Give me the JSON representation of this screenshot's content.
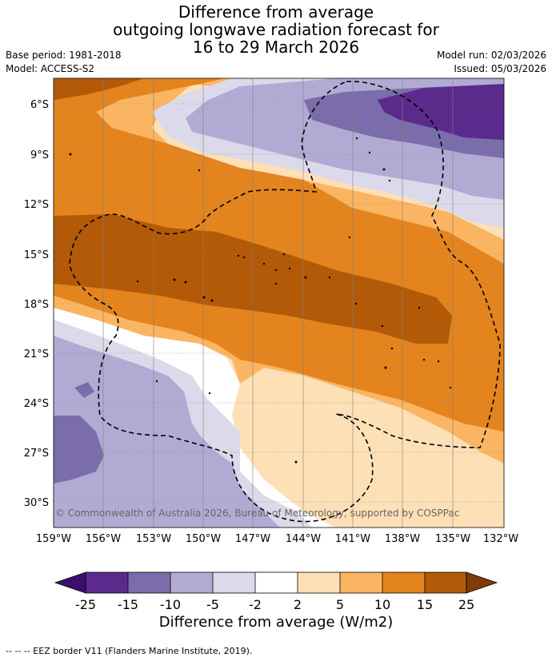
{
  "title": {
    "line1": "Difference from average",
    "line2": "outgoing longwave radiation forecast for",
    "line3": "16 to 29 March 2026"
  },
  "meta": {
    "base_period": "Base period: 1981-2018",
    "model": "Model: ACCESS-S2",
    "model_run": "Model run: 02/03/2026",
    "issued": "Issued: 05/03/2026"
  },
  "map": {
    "lat_labels": [
      "6°S",
      "9°S",
      "12°S",
      "15°S",
      "18°S",
      "21°S",
      "24°S",
      "27°S",
      "30°S"
    ],
    "lon_labels": [
      "159°W",
      "156°W",
      "153°W",
      "150°W",
      "147°W",
      "144°W",
      "141°W",
      "138°W",
      "135°W",
      "132°W"
    ],
    "copyright": "© Commonwealth of Australia 2026, Bureau of Meteorology, supported by COSPPac"
  },
  "colorbar": {
    "ticks": [
      "-25",
      "-15",
      "-10",
      "-5",
      "-2",
      "2",
      "5",
      "10",
      "15",
      "25"
    ],
    "colors": {
      "lt_neg25": "#3b0f6f",
      "neg25_neg15": "#5a2a8c",
      "neg15_neg10": "#7b6dab",
      "neg10_neg5": "#b1abd4",
      "neg5_neg2": "#dcdaea",
      "neg2_2": "#ffffff",
      "p2_5": "#fde0b6",
      "p5_10": "#fbb562",
      "p10_15": "#e3841e",
      "p15_25": "#b35a08",
      "gt_25": "#7f3b08"
    },
    "label": "Difference from average (W/m2)"
  },
  "footer": "--  --  -- EEZ border V11 (Flanders Marine Institute, 2019)."
}
